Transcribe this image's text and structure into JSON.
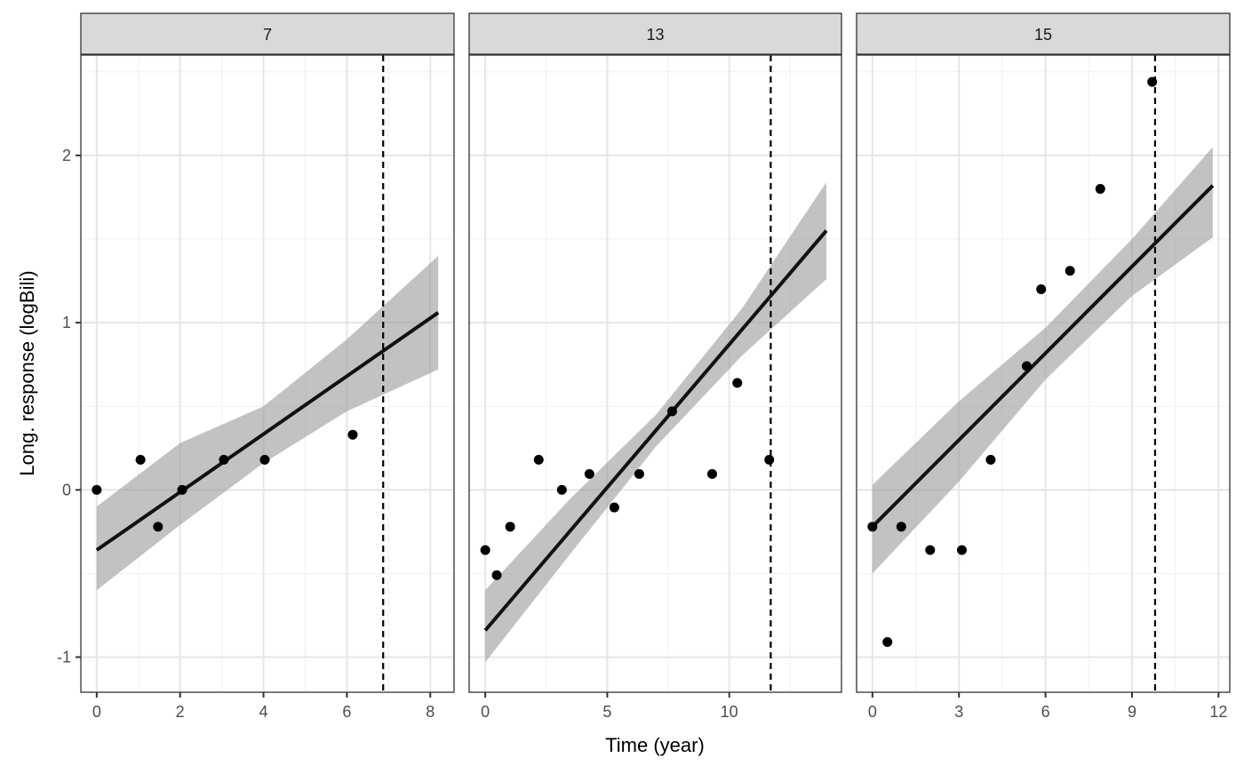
{
  "chart_data": {
    "type": "scatter",
    "facet_type": "panel scatter with linear fit, confidence ribbon and dashed vertical line",
    "xlabel": "Time (year)",
    "ylabel": "Long. response (logBili)",
    "ylim": [
      -1.21,
      2.6
    ],
    "yticks": [
      -1,
      0,
      1,
      2
    ],
    "yticklabels": [
      "-1",
      "0",
      "1",
      "2"
    ],
    "grid": true,
    "panels": [
      {
        "strip": "7",
        "xlim": [
          -0.38,
          8.57
        ],
        "xticks": [
          0,
          2,
          4,
          6,
          8
        ],
        "xticklabels": [
          "0",
          "2",
          "4",
          "6",
          "8"
        ],
        "points": [
          [
            0,
            0
          ],
          [
            1.05,
            0.18
          ],
          [
            1.47,
            -0.22
          ],
          [
            2.05,
            0
          ],
          [
            3.05,
            0.18
          ],
          [
            4.03,
            0.18
          ],
          [
            6.14,
            0.33
          ]
        ],
        "fit": [
          [
            0,
            -0.36
          ],
          [
            8.19,
            1.06
          ]
        ],
        "ribbon": {
          "x": [
            0,
            2,
            4,
            6,
            8.19
          ],
          "lower": [
            -0.6,
            -0.21,
            0.16,
            0.47,
            0.72
          ],
          "upper": [
            -0.1,
            0.28,
            0.5,
            0.9,
            1.4
          ]
        },
        "vline": 6.87
      },
      {
        "strip": "13",
        "xlim": [
          -0.66,
          14.6
        ],
        "xticks": [
          0,
          5,
          10
        ],
        "xticklabels": [
          "0",
          "5",
          "10"
        ],
        "points": [
          [
            0,
            -0.36
          ],
          [
            0.47,
            -0.51
          ],
          [
            1.02,
            -0.22
          ],
          [
            2.19,
            0.18
          ],
          [
            3.14,
            0
          ],
          [
            4.27,
            0.095
          ],
          [
            5.29,
            -0.105
          ],
          [
            6.31,
            0.095
          ],
          [
            7.66,
            0.47
          ],
          [
            9.3,
            0.095
          ],
          [
            10.33,
            0.64
          ],
          [
            11.64,
            0.18
          ]
        ],
        "fit": [
          [
            0,
            -0.84
          ],
          [
            13.98,
            1.55
          ]
        ],
        "ribbon": {
          "x": [
            0,
            3.5,
            7,
            10.5,
            13.98
          ],
          "lower": [
            -1.03,
            -0.38,
            0.26,
            0.8,
            1.26
          ],
          "upper": [
            -0.6,
            -0.05,
            0.45,
            1.08,
            1.84
          ]
        },
        "vline": 11.7
      },
      {
        "strip": "15",
        "xlim": [
          -0.55,
          12.39
        ],
        "xticks": [
          0,
          3,
          6,
          9,
          12
        ],
        "xticklabels": [
          "0",
          "3",
          "6",
          "9",
          "12"
        ],
        "points": [
          [
            0,
            -0.22
          ],
          [
            0.52,
            -0.91
          ],
          [
            1.0,
            -0.22
          ],
          [
            2.0,
            -0.36
          ],
          [
            3.1,
            -0.36
          ],
          [
            4.1,
            0.18
          ],
          [
            5.35,
            0.74
          ],
          [
            5.85,
            1.2
          ],
          [
            6.85,
            1.31
          ],
          [
            7.9,
            1.8
          ],
          [
            9.7,
            2.44
          ]
        ],
        "fit": [
          [
            0,
            -0.22
          ],
          [
            11.8,
            1.82
          ]
        ],
        "ribbon": {
          "x": [
            0,
            3,
            6,
            9,
            11.8
          ],
          "lower": [
            -0.5,
            0.05,
            0.66,
            1.16,
            1.51
          ],
          "upper": [
            0.03,
            0.53,
            0.97,
            1.5,
            2.05
          ]
        },
        "vline": 9.8
      }
    ]
  }
}
